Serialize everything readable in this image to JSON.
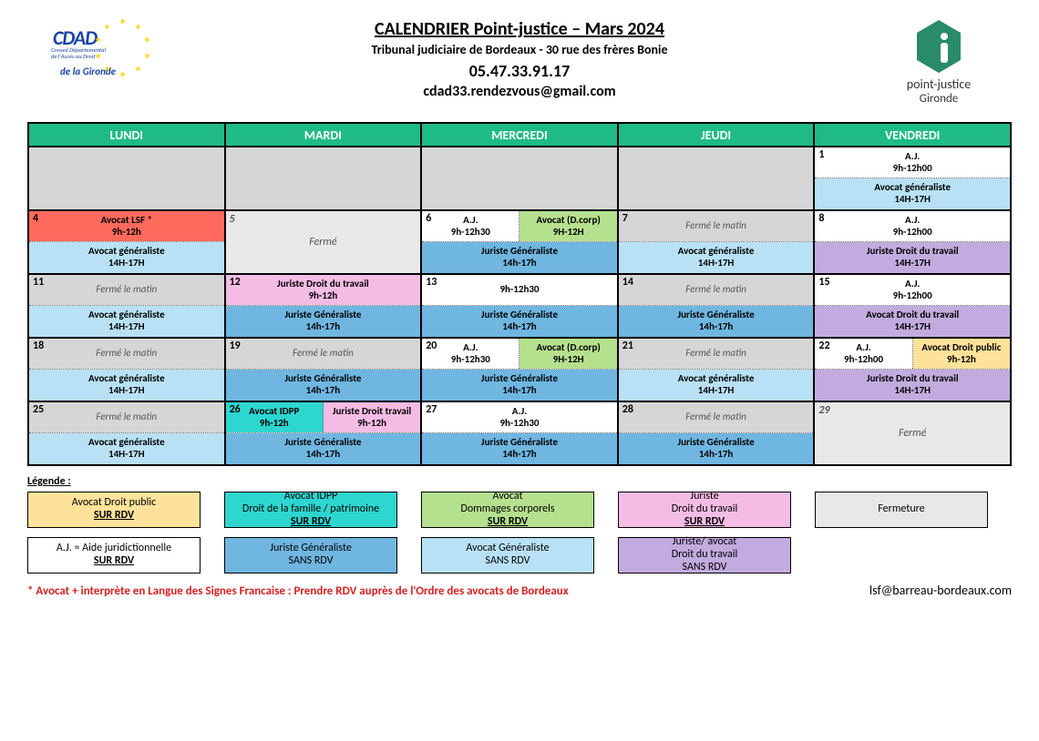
{
  "header": {
    "title": "CALENDRIER Point-justice – Mars 2024",
    "subtitle": "Tribunal judiciaire de Bordeaux - 30 rue des frères Bonie",
    "phone": "05.47.33.91.17",
    "email": "cdad33.rendezvous@gmail.com",
    "logo_left": {
      "main": "CDAD",
      "sub1": "Conseil Départemental",
      "sub2": "de l'Accès au Droit",
      "sub3": "de la Gironde"
    },
    "logo_right": {
      "line1": "point-justice",
      "line2": "Gironde"
    }
  },
  "colors": {
    "header_green": "#1fbb87",
    "grey": "#d6d6d6",
    "lgrey": "#e8e8e8",
    "lblue": "#b8e1f5",
    "mblue": "#6fb6e0",
    "red": "#ff6a5c",
    "white": "#ffffff",
    "pink": "#f4bce4",
    "green": "#b5e08e",
    "cyan": "#2ed6d0",
    "purple": "#c2abde",
    "yellow": "#ffe29a",
    "footnote": "#d62020"
  },
  "day_headers": [
    "LUNDI",
    "MARDI",
    "MERCREDI",
    "JEUDI",
    "VENDREDI"
  ],
  "weeks": [
    [
      {
        "blank": true
      },
      {
        "blank": true
      },
      {
        "blank": true
      },
      {
        "blank": true
      },
      {
        "num": "1",
        "top": [
          {
            "l1": "A.J.",
            "l2": "9h-12h00",
            "c": "white"
          }
        ],
        "bot": [
          {
            "l1": "Avocat généraliste",
            "l2": "14H-17H",
            "c": "lblue"
          }
        ]
      }
    ],
    [
      {
        "num": "4",
        "top": [
          {
            "l1": "Avocat LSF *",
            "l2": "9h-12h",
            "c": "red"
          }
        ],
        "bot": [
          {
            "l1": "Avocat généraliste",
            "l2": "14H-17H",
            "c": "lblue"
          }
        ]
      },
      {
        "num": "5",
        "full_closed": "Fermé"
      },
      {
        "num": "6",
        "top": [
          {
            "l1": "A.J.",
            "l2": "9h-12h30",
            "c": "white"
          },
          {
            "l1": "Avocat (D.corp)",
            "l2": "9H-12H",
            "c": "green"
          }
        ],
        "bot": [
          {
            "l1": "Juriste Généraliste",
            "l2": "14h-17h",
            "c": "mblue"
          }
        ]
      },
      {
        "num": "7",
        "top": [
          {
            "l1": "Fermé le matin",
            "c": "grey",
            "closed": true
          }
        ],
        "bot": [
          {
            "l1": "Avocat généraliste",
            "l2": "14H-17H",
            "c": "lblue"
          }
        ]
      },
      {
        "num": "8",
        "top": [
          {
            "l1": "A.J.",
            "l2": "9h-12h00",
            "c": "white"
          }
        ],
        "bot": [
          {
            "l1": "Juriste Droit du travail",
            "l2": "14H-17H",
            "c": "purple"
          }
        ]
      }
    ],
    [
      {
        "num": "11",
        "top": [
          {
            "l1": "Fermé le matin",
            "c": "grey",
            "closed": true
          }
        ],
        "bot": [
          {
            "l1": "Avocat généraliste",
            "l2": "14H-17H",
            "c": "lblue"
          }
        ]
      },
      {
        "num": "12",
        "top": [
          {
            "l1": "Juriste Droit du travail",
            "l2": "9h-12h",
            "c": "pink"
          }
        ],
        "bot": [
          {
            "l1": "Juriste Généraliste",
            "l2": "14h-17h",
            "c": "mblue"
          }
        ]
      },
      {
        "num": "13",
        "top": [
          {
            "l1": "",
            "l2": "9h-12h30",
            "c": "white"
          }
        ],
        "bot": [
          {
            "l1": "Juriste Généraliste",
            "l2": "14h-17h",
            "c": "mblue"
          }
        ]
      },
      {
        "num": "14",
        "top": [
          {
            "l1": "Fermé le matin",
            "c": "grey",
            "closed": true
          }
        ],
        "bot": [
          {
            "l1": "Juriste Généraliste",
            "l2": "14h-17h",
            "c": "mblue"
          }
        ]
      },
      {
        "num": "15",
        "top": [
          {
            "l1": "A.J.",
            "l2": "9h-12h00",
            "c": "white"
          }
        ],
        "bot": [
          {
            "l1": "Avocat Droit du travail",
            "l2": "14H-17H",
            "c": "purple"
          }
        ]
      }
    ],
    [
      {
        "num": "18",
        "top": [
          {
            "l1": "Fermé le matin",
            "c": "grey",
            "closed": true
          }
        ],
        "bot": [
          {
            "l1": "Avocat généraliste",
            "l2": "14H-17H",
            "c": "lblue"
          }
        ]
      },
      {
        "num": "19",
        "top": [
          {
            "l1": "Fermé le matin",
            "c": "grey",
            "closed": true
          }
        ],
        "bot": [
          {
            "l1": "Juriste Généraliste",
            "l2": "14h-17h",
            "c": "mblue"
          }
        ]
      },
      {
        "num": "20",
        "top": [
          {
            "l1": "A.J.",
            "l2": "9h-12h30",
            "c": "white"
          },
          {
            "l1": "Avocat (D.corp)",
            "l2": "9H-12H",
            "c": "green"
          }
        ],
        "bot": [
          {
            "l1": "Juriste Généraliste",
            "l2": "14h-17h",
            "c": "mblue"
          }
        ]
      },
      {
        "num": "21",
        "top": [
          {
            "l1": "Fermé le matin",
            "c": "grey",
            "closed": true
          }
        ],
        "bot": [
          {
            "l1": "Avocat généraliste",
            "l2": "14H-17H",
            "c": "lblue"
          }
        ]
      },
      {
        "num": "22",
        "top": [
          {
            "l1": "A.J.",
            "l2": "9h-12h00",
            "c": "white"
          },
          {
            "l1": "Avocat Droit public",
            "l2": "9h-12h",
            "c": "yellow"
          }
        ],
        "bot": [
          {
            "l1": "Juriste Droit du travail",
            "l2": "14H-17H",
            "c": "purple"
          }
        ]
      }
    ],
    [
      {
        "num": "25",
        "top": [
          {
            "l1": "Fermé le matin",
            "c": "grey",
            "closed": true
          }
        ],
        "bot": [
          {
            "l1": "Avocat généraliste",
            "l2": "14H-17H",
            "c": "lblue"
          }
        ]
      },
      {
        "num": "26",
        "top": [
          {
            "l1": "Avocat IDPP",
            "l2": "9h-12h",
            "c": "cyan"
          },
          {
            "l1": "Juriste Droit travail",
            "l2": "9h-12h",
            "c": "pink"
          }
        ],
        "bot": [
          {
            "l1": "Juriste Généraliste",
            "l2": "14h-17h",
            "c": "mblue"
          }
        ]
      },
      {
        "num": "27",
        "top": [
          {
            "l1": "A.J.",
            "l2": "9h-12h30",
            "c": "white"
          }
        ],
        "bot": [
          {
            "l1": "Juriste Généraliste",
            "l2": "14h-17h",
            "c": "mblue"
          }
        ]
      },
      {
        "num": "28",
        "top": [
          {
            "l1": "Fermé le matin",
            "c": "grey",
            "closed": true
          }
        ],
        "bot": [
          {
            "l1": "Juriste Généraliste",
            "l2": "14h-17h",
            "c": "mblue"
          }
        ]
      },
      {
        "num": "29",
        "full_closed": "Fermé"
      }
    ]
  ],
  "legend_title": "Légende :",
  "legend": [
    [
      {
        "c": "yellow",
        "l1": "Avocat Droit public",
        "u": "SUR RDV"
      },
      {
        "c": "white",
        "l1": "A.J. = Aide juridictionnelle",
        "u": "SUR RDV"
      }
    ],
    [
      {
        "c": "cyan",
        "l1": "Avocat IDPP",
        "l2": "Droit de la famille / patrimoine",
        "u": "SUR RDV"
      },
      {
        "c": "mblue",
        "l1": "Juriste Généraliste",
        "l2": "SANS RDV"
      }
    ],
    [
      {
        "c": "green",
        "l1": "Avocat",
        "l2": "Dommages corporels",
        "u": "SUR RDV"
      },
      {
        "c": "lblue",
        "l1": "Avocat Généraliste",
        "l2": "SANS RDV"
      }
    ],
    [
      {
        "c": "pink",
        "l1": "Juriste",
        "l2": "Droit du travail",
        "u": "SUR RDV"
      },
      {
        "c": "purple",
        "l1": "Juriste/ avocat",
        "l2": "Droit du travail",
        "l3": "SANS RDV"
      }
    ],
    [
      {
        "c": "lgrey",
        "l1": "Fermeture"
      }
    ]
  ],
  "footnote": "* Avocat + interprète en Langue des Signes Francaise : Prendre  RDV auprès de l'Ordre des avocats de Bordeaux",
  "footer_email": "lsf@barreau-bordeaux.com"
}
